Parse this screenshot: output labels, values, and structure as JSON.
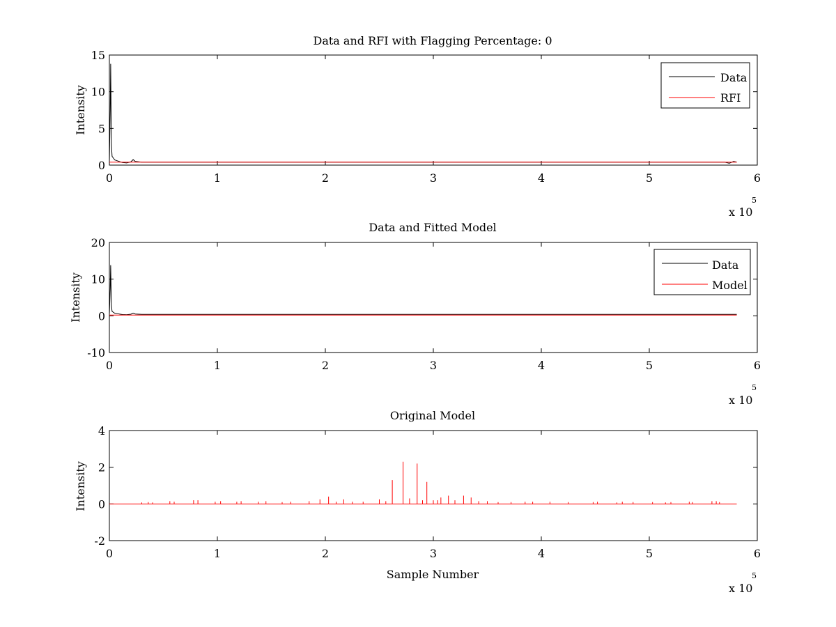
{
  "chart_data": [
    {
      "type": "line",
      "title": "Data and RFI with Flagging Percentage: 0",
      "xlabel": "",
      "ylabel": "Intensity",
      "xlim": [
        0,
        600000
      ],
      "ylim": [
        0,
        15
      ],
      "xticks": [
        0,
        1,
        2,
        3,
        4,
        5,
        6
      ],
      "yticks": [
        0,
        5,
        10,
        15
      ],
      "x_multiplier": "x 10",
      "x_multiplier_exponent": "5",
      "grid": false,
      "legend_position": "top-right",
      "series": [
        {
          "name": "Data",
          "color": "#000000",
          "points": [
            [
              0,
              0.5
            ],
            [
              800,
              7.5
            ],
            [
              1200,
              13.8
            ],
            [
              1800,
              3.0
            ],
            [
              2500,
              1.2
            ],
            [
              5000,
              0.7
            ],
            [
              8000,
              0.55
            ],
            [
              12000,
              0.35
            ],
            [
              16000,
              0.3
            ],
            [
              20000,
              0.45
            ],
            [
              22000,
              0.75
            ],
            [
              24000,
              0.5
            ],
            [
              30000,
              0.4
            ],
            [
              100000,
              0.4
            ],
            [
              200000,
              0.4
            ],
            [
              300000,
              0.4
            ],
            [
              400000,
              0.4
            ],
            [
              500000,
              0.4
            ],
            [
              570000,
              0.4
            ],
            [
              574000,
              0.25
            ],
            [
              578000,
              0.5
            ],
            [
              581000,
              0.42
            ]
          ]
        },
        {
          "name": "RFI",
          "color": "#ff0000",
          "points": [
            [
              0,
              0.4
            ],
            [
              581000,
              0.4
            ]
          ]
        }
      ]
    },
    {
      "type": "line",
      "title": "Data and Fitted Model",
      "xlabel": "",
      "ylabel": "Intensity",
      "xlim": [
        0,
        600000
      ],
      "ylim": [
        -10,
        20
      ],
      "xticks": [
        0,
        1,
        2,
        3,
        4,
        5,
        6
      ],
      "yticks": [
        -10,
        0,
        10,
        20
      ],
      "x_multiplier": "x 10",
      "x_multiplier_exponent": "5",
      "grid": false,
      "legend_position": "top-right",
      "series": [
        {
          "name": "Data",
          "color": "#000000",
          "points": [
            [
              0,
              0.5
            ],
            [
              800,
              7.5
            ],
            [
              1200,
              13.8
            ],
            [
              1800,
              3.0
            ],
            [
              2500,
              1.2
            ],
            [
              5000,
              0.7
            ],
            [
              8000,
              0.55
            ],
            [
              12000,
              0.35
            ],
            [
              16000,
              0.3
            ],
            [
              20000,
              0.45
            ],
            [
              22000,
              0.75
            ],
            [
              24000,
              0.5
            ],
            [
              30000,
              0.4
            ],
            [
              581000,
              0.4
            ]
          ]
        },
        {
          "name": "Model",
          "color": "#ff0000",
          "points": [
            [
              0,
              0.2
            ],
            [
              581000,
              0.2
            ]
          ]
        }
      ]
    },
    {
      "type": "line",
      "title": "Original Model",
      "xlabel": "Sample Number",
      "ylabel": "Intensity",
      "xlim": [
        0,
        600000
      ],
      "ylim": [
        -2,
        4
      ],
      "xticks": [
        0,
        1,
        2,
        3,
        4,
        5,
        6
      ],
      "yticks": [
        -2,
        0,
        2,
        4
      ],
      "x_multiplier": "x 10",
      "x_multiplier_exponent": "5",
      "grid": false,
      "series": [
        {
          "color": "#ff0000",
          "baseline": 0,
          "x_range": [
            0,
            581000
          ],
          "spikes": [
            [
              30000,
              0.08
            ],
            [
              36000,
              0.1
            ],
            [
              40000,
              0.08
            ],
            [
              56000,
              0.15
            ],
            [
              60000,
              0.12
            ],
            [
              78000,
              0.2
            ],
            [
              82000,
              0.2
            ],
            [
              98000,
              0.12
            ],
            [
              103000,
              0.15
            ],
            [
              118000,
              0.12
            ],
            [
              122000,
              0.15
            ],
            [
              138000,
              0.12
            ],
            [
              145000,
              0.15
            ],
            [
              160000,
              0.1
            ],
            [
              168000,
              0.12
            ],
            [
              185000,
              0.15
            ],
            [
              195000,
              0.25
            ],
            [
              203000,
              0.4
            ],
            [
              210000,
              0.12
            ],
            [
              217000,
              0.25
            ],
            [
              225000,
              0.12
            ],
            [
              235000,
              0.12
            ],
            [
              250000,
              0.25
            ],
            [
              256000,
              0.15
            ],
            [
              262000,
              1.3
            ],
            [
              272000,
              2.3
            ],
            [
              278000,
              0.3
            ],
            [
              285000,
              2.2
            ],
            [
              290000,
              0.2
            ],
            [
              294000,
              1.2
            ],
            [
              300000,
              0.2
            ],
            [
              304000,
              0.2
            ],
            [
              307000,
              0.35
            ],
            [
              314000,
              0.45
            ],
            [
              320000,
              0.2
            ],
            [
              328000,
              0.45
            ],
            [
              335000,
              0.35
            ],
            [
              342000,
              0.15
            ],
            [
              350000,
              0.15
            ],
            [
              360000,
              0.1
            ],
            [
              372000,
              0.1
            ],
            [
              385000,
              0.12
            ],
            [
              392000,
              0.12
            ],
            [
              408000,
              0.12
            ],
            [
              425000,
              0.1
            ],
            [
              448000,
              0.1
            ],
            [
              452000,
              0.12
            ],
            [
              470000,
              0.08
            ],
            [
              475000,
              0.12
            ],
            [
              485000,
              0.1
            ],
            [
              503000,
              0.1
            ],
            [
              515000,
              0.08
            ],
            [
              520000,
              0.1
            ],
            [
              537000,
              0.12
            ],
            [
              540000,
              0.1
            ],
            [
              558000,
              0.15
            ],
            [
              562000,
              0.15
            ],
            [
              565000,
              0.1
            ]
          ]
        }
      ]
    }
  ]
}
